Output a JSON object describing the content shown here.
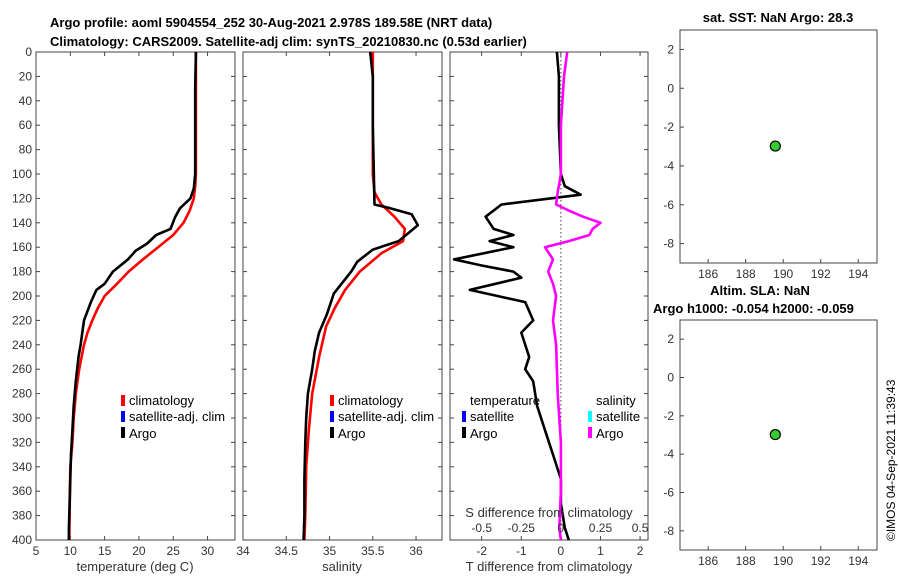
{
  "header": {
    "title_line1": "Argo profile: aoml 5904554_252 30-Aug-2021 2.978S 189.58E (NRT data)",
    "title_line2": "Climatology: CARS2009. Satellite-adj clim: synTS_20210830.nc (0.53d earlier)"
  },
  "colors": {
    "climatology": "#ff0000",
    "satellite_adj": "#0000ff",
    "argo": "#000000",
    "temperature_diff": "#000000",
    "salinity_diff": "#ff00ff",
    "salinity_satellite": "#00ffff",
    "marker": "#33cc33"
  },
  "watermark": "©IMOS 04-Sep-2021 11:39:43",
  "chart_data": [
    {
      "type": "line",
      "id": "temperature",
      "xlabel": "temperature (deg C)",
      "xlim": [
        5,
        34
      ],
      "ylim": [
        0,
        400
      ],
      "xticks": [
        5,
        10,
        15,
        20,
        25,
        30
      ],
      "yticks": [
        0,
        20,
        40,
        60,
        80,
        100,
        120,
        140,
        160,
        180,
        200,
        220,
        240,
        260,
        280,
        300,
        320,
        340,
        360,
        380,
        400
      ],
      "legend": [
        "climatology",
        "satellite-adj. clim",
        "Argo"
      ],
      "series": [
        {
          "name": "climatology",
          "x": [
            28.3,
            28.3,
            28.3,
            28.2,
            28.0,
            27.4,
            26.5,
            25.0,
            22.8,
            20.6,
            18.5,
            16.8,
            15.0,
            14.0,
            13.2,
            12.5,
            12.0,
            11.3,
            10.8,
            10.5,
            10.3,
            10.0,
            9.9,
            9.85
          ],
          "y": [
            0,
            60,
            100,
            110,
            120,
            130,
            140,
            150,
            160,
            170,
            180,
            190,
            200,
            210,
            220,
            230,
            240,
            260,
            280,
            300,
            320,
            340,
            380,
            400
          ]
        },
        {
          "name": "Argo",
          "x": [
            28.3,
            28.2,
            28.2,
            28.0,
            27.5,
            26.0,
            25.3,
            24.6,
            22.5,
            21.2,
            19.5,
            18.4,
            16.2,
            15.0,
            13.8,
            13.0,
            12.0,
            11.5,
            11.2,
            10.8,
            10.5,
            10.3,
            10.1,
            10.0,
            9.9,
            9.8,
            9.8
          ],
          "y": [
            0,
            30,
            100,
            112,
            120,
            128,
            135,
            145,
            150,
            157,
            163,
            170,
            180,
            190,
            195,
            205,
            220,
            240,
            250,
            270,
            290,
            310,
            330,
            350,
            370,
            390,
            400
          ]
        }
      ]
    },
    {
      "type": "line",
      "id": "salinity",
      "xlabel": "salinity",
      "xlim": [
        34.0,
        36.3
      ],
      "ylim": [
        0,
        400
      ],
      "xticks": [
        34,
        34.5,
        35,
        35.5,
        36
      ],
      "xticklabels": [
        "34",
        "34.5",
        "35",
        "35.5",
        "36"
      ],
      "legend": [
        "climatology",
        "satellite-adj. clim",
        "Argo"
      ],
      "series": [
        {
          "name": "climatology",
          "x": [
            35.5,
            35.5,
            35.52,
            35.6,
            35.75,
            35.87,
            35.85,
            35.6,
            35.35,
            35.18,
            35.06,
            34.96,
            34.88,
            34.8,
            34.76,
            34.73,
            34.72,
            34.71
          ],
          "y": [
            0,
            100,
            115,
            125,
            135,
            145,
            155,
            165,
            180,
            195,
            210,
            225,
            250,
            280,
            310,
            340,
            380,
            400
          ]
        },
        {
          "name": "Argo",
          "x": [
            35.47,
            35.5,
            35.5,
            35.52,
            35.7,
            35.95,
            36.02,
            35.8,
            35.5,
            35.32,
            35.25,
            35.05,
            34.97,
            34.88,
            34.83,
            34.8,
            34.75,
            34.73,
            34.72,
            34.71,
            34.71,
            34.7
          ],
          "y": [
            0,
            20,
            60,
            125,
            128,
            133,
            142,
            155,
            162,
            172,
            180,
            198,
            215,
            230,
            245,
            260,
            280,
            300,
            320,
            350,
            380,
            400
          ]
        }
      ]
    },
    {
      "type": "line",
      "id": "difference",
      "xlabel": "T difference from climatology",
      "xlabel_top": "S difference from climatology",
      "xlim": [
        -2.8,
        2.2
      ],
      "ylim": [
        0,
        400
      ],
      "xticks": [
        -2,
        -1,
        0,
        1,
        2
      ],
      "top_ticklabels": [
        "-0.5",
        "-0.25",
        "0",
        "0.25",
        "0.5"
      ],
      "top_tick_values": [
        -0.5,
        -0.25,
        0,
        0.25,
        0.5
      ],
      "legend_temperature": {
        "title": "temperature",
        "items": [
          "satellite",
          "Argo"
        ]
      },
      "legend_salinity": {
        "title": "salinity",
        "items": [
          "satellite",
          "Argo"
        ]
      },
      "series": [
        {
          "name": "temperature Argo",
          "x": [
            -0.1,
            -0.05,
            -0.05,
            0.0,
            0.1,
            0.5,
            -1.5,
            -1.9,
            -1.7,
            -1.2,
            -1.8,
            -1.2,
            -2.7,
            -2.0,
            -1.2,
            -1.0,
            -2.3,
            -1.6,
            -0.9,
            -0.7,
            -1.0,
            -0.8,
            -0.9,
            -0.7,
            -0.6,
            -0.4,
            -0.2,
            0.0,
            0.0,
            0.1,
            0.2
          ],
          "y": [
            0,
            20,
            60,
            100,
            110,
            117,
            125,
            135,
            145,
            150,
            155,
            160,
            170,
            175,
            180,
            185,
            195,
            200,
            205,
            220,
            230,
            250,
            260,
            270,
            290,
            310,
            330,
            350,
            370,
            390,
            400
          ]
        },
        {
          "name": "salinity Argo",
          "x": [
            0.04,
            0.02,
            0.0,
            0.0,
            -0.02,
            -0.03,
            0.05,
            0.14,
            0.25,
            0.2,
            0.18,
            0.05,
            -0.1,
            -0.05,
            -0.08,
            -0.05,
            -0.03,
            -0.05,
            -0.03,
            -0.02,
            0.0,
            0.0,
            -0.01,
            0.0
          ],
          "y": [
            0,
            20,
            60,
            100,
            115,
            125,
            130,
            135,
            140,
            145,
            150,
            155,
            160,
            170,
            180,
            190,
            200,
            220,
            240,
            280,
            320,
            360,
            390,
            400
          ]
        }
      ]
    },
    {
      "type": "scatter",
      "id": "sst",
      "title": "sat. SST: NaN Argo: 28.3",
      "xlim": [
        184.5,
        195
      ],
      "ylim": [
        -9,
        3
      ],
      "xticks": [
        186,
        188,
        190,
        192,
        194
      ],
      "yticks": [
        2,
        0,
        -2,
        -4,
        -6,
        -8
      ],
      "points": [
        {
          "x": 189.58,
          "y": -2.978
        }
      ]
    },
    {
      "type": "scatter",
      "id": "sla",
      "title_line1": "Altim. SLA: NaN",
      "title_line2": "Argo h1000: -0.054 h2000: -0.059",
      "xlim": [
        184.5,
        195
      ],
      "ylim": [
        -9,
        3
      ],
      "xticks": [
        186,
        188,
        190,
        192,
        194
      ],
      "yticks": [
        2,
        0,
        -2,
        -4,
        -6,
        -8
      ],
      "points": [
        {
          "x": 189.58,
          "y": -2.978
        }
      ]
    }
  ]
}
